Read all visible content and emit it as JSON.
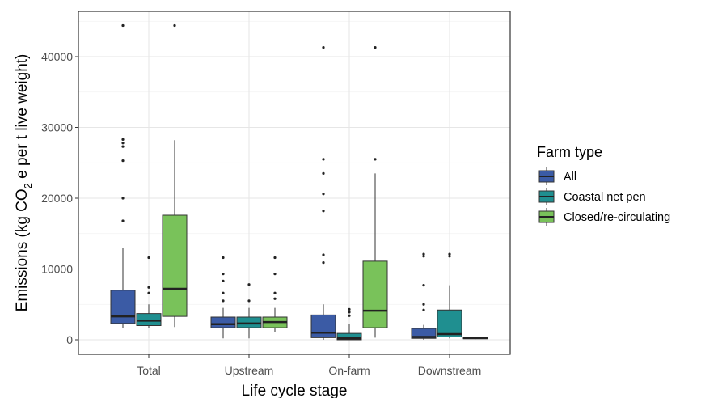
{
  "chart_data": {
    "type": "box",
    "xlabel": "Life cycle stage",
    "ylabel": {
      "prefix": "Emissions (kg CO",
      "subscript": "2",
      "suffix": " e per t live weight)"
    },
    "ylim": [
      -1300,
      46000
    ],
    "yticks": [
      0,
      10000,
      20000,
      30000,
      40000
    ],
    "grid": true,
    "legend_title": "Farm type",
    "legend_position": "right",
    "categories": [
      "Total",
      "Upstream",
      "On-farm",
      "Downstream"
    ],
    "series": [
      {
        "name": "All",
        "color": "#3b5ba5",
        "boxes": [
          {
            "category": "Total",
            "q1": 2300,
            "median": 3300,
            "q3": 7000,
            "whisker_low": 1600,
            "whisker_high": 13000,
            "outliers": [
              16800,
              20000,
              25300,
              27300,
              27800,
              28300,
              44400
            ]
          },
          {
            "category": "Upstream",
            "q1": 1700,
            "median": 2200,
            "q3": 3200,
            "whisker_low": 200,
            "whisker_high": 4500,
            "outliers": [
              5500,
              6600,
              8300,
              9300,
              11600
            ]
          },
          {
            "category": "On-farm",
            "q1": 300,
            "median": 1000,
            "q3": 3500,
            "whisker_low": 0,
            "whisker_high": 5000,
            "outliers": [
              10900,
              12000,
              18200,
              20600,
              23500,
              25500,
              41300
            ]
          },
          {
            "category": "Downstream",
            "q1": 200,
            "median": 400,
            "q3": 1600,
            "whisker_low": 0,
            "whisker_high": 2100,
            "outliers": [
              4200,
              5000,
              7700,
              11800,
              12100
            ]
          }
        ]
      },
      {
        "name": "Coastal net pen",
        "color": "#1f8f90",
        "boxes": [
          {
            "category": "Total",
            "q1": 2000,
            "median": 2700,
            "q3": 3700,
            "whisker_low": 1700,
            "whisker_high": 5000,
            "outliers": [
              6600,
              7400,
              11600
            ]
          },
          {
            "category": "Upstream",
            "q1": 1700,
            "median": 2300,
            "q3": 3200,
            "whisker_low": 200,
            "whisker_high": 4500,
            "outliers": [
              5500,
              7800
            ]
          },
          {
            "category": "On-farm",
            "q1": 0,
            "median": 200,
            "q3": 900,
            "whisker_low": 0,
            "whisker_high": 2200,
            "outliers": [
              3400,
              3900,
              4300
            ]
          },
          {
            "category": "Downstream",
            "q1": 400,
            "median": 800,
            "q3": 4200,
            "whisker_low": 200,
            "whisker_high": 7700,
            "outliers": [
              11800,
              12100
            ]
          }
        ]
      },
      {
        "name": "Closed/re-circulating",
        "color": "#79c25a",
        "boxes": [
          {
            "category": "Total",
            "q1": 3300,
            "median": 7200,
            "q3": 17600,
            "whisker_low": 1800,
            "whisker_high": 28200,
            "outliers": [
              44400
            ]
          },
          {
            "category": "Upstream",
            "q1": 1700,
            "median": 2500,
            "q3": 3200,
            "whisker_low": 1100,
            "whisker_high": 4500,
            "outliers": [
              5800,
              6600,
              9300,
              11600
            ]
          },
          {
            "category": "On-farm",
            "q1": 1700,
            "median": 4100,
            "q3": 11100,
            "whisker_low": 300,
            "whisker_high": 23500,
            "outliers": [
              25500,
              41300
            ]
          },
          {
            "category": "Downstream",
            "q1": 150,
            "median": 250,
            "q3": 350,
            "whisker_low": 100,
            "whisker_high": 400,
            "outliers": []
          }
        ]
      }
    ]
  }
}
